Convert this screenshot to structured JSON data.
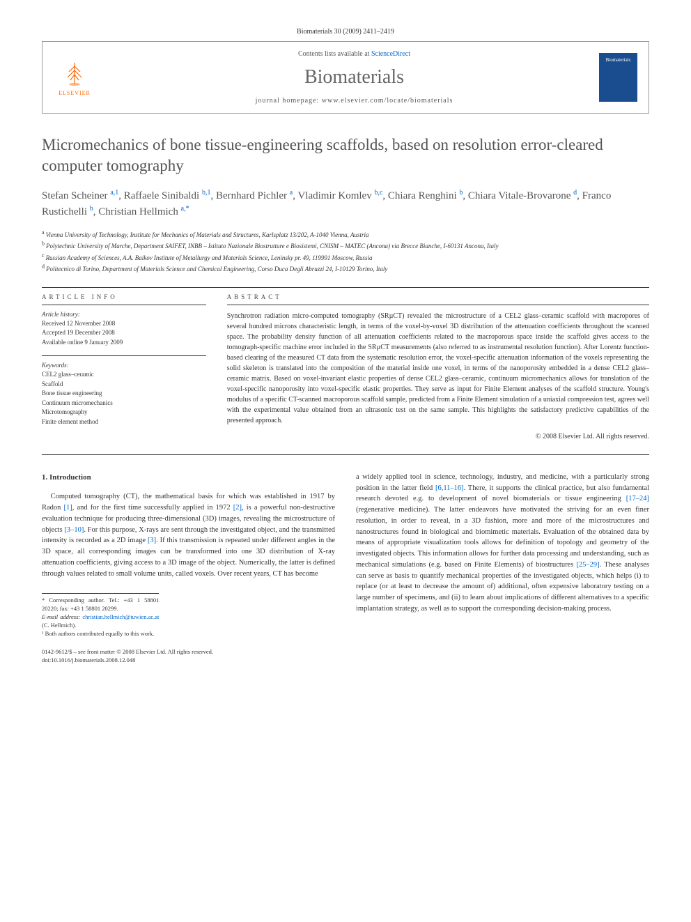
{
  "header": {
    "citation": "Biomaterials 30 (2009) 2411–2419",
    "contents_prefix": "Contents lists available at ",
    "contents_link": "ScienceDirect",
    "journal_name": "Biomaterials",
    "homepage_prefix": "journal homepage: ",
    "homepage_url": "www.elsevier.com/locate/biomaterials",
    "publisher": "ELSEVIER",
    "cover_label": "Biomaterials"
  },
  "title": "Micromechanics of bone tissue-engineering scaffolds, based on resolution error-cleared computer tomography",
  "authors": [
    {
      "name": "Stefan Scheiner",
      "marks": "a,1"
    },
    {
      "name": "Raffaele Sinibaldi",
      "marks": "b,1"
    },
    {
      "name": "Bernhard Pichler",
      "marks": "a"
    },
    {
      "name": "Vladimir Komlev",
      "marks": "b,c"
    },
    {
      "name": "Chiara Renghini",
      "marks": "b"
    },
    {
      "name": "Chiara Vitale-Brovarone",
      "marks": "d"
    },
    {
      "name": "Franco Rustichelli",
      "marks": "b"
    },
    {
      "name": "Christian Hellmich",
      "marks": "a,*"
    }
  ],
  "affiliations": [
    {
      "mark": "a",
      "text": "Vienna University of Technology, Institute for Mechanics of Materials and Structures, Karlsplatz 13/202, A-1040 Vienna, Austria"
    },
    {
      "mark": "b",
      "text": "Polytechnic University of Marche, Department SAIFET, INBB – Istituto Nazionale Biostrutture e Biosistemi, CNISM – MATEC (Ancona) via Brecce Bianche, I-60131 Ancona, Italy"
    },
    {
      "mark": "c",
      "text": "Russian Academy of Sciences, A.A. Baikov Institute of Metallurgy and Materials Science, Leninsky pr. 49, 119991 Moscow, Russia"
    },
    {
      "mark": "d",
      "text": "Politecnico di Torino, Department of Materials Science and Chemical Engineering, Corso Duca Degli Abruzzi 24, I-10129 Torino, Italy"
    }
  ],
  "info": {
    "header": "ARTICLE INFO",
    "history_label": "Article history:",
    "received": "Received 12 November 2008",
    "accepted": "Accepted 19 December 2008",
    "online": "Available online 9 January 2009",
    "keywords_label": "Keywords:",
    "keywords": [
      "CEL2 glass–ceramic",
      "Scaffold",
      "Bone tissue engineering",
      "Continuum micromechanics",
      "Microtomography",
      "Finite element method"
    ]
  },
  "abstract": {
    "header": "ABSTRACT",
    "text": "Synchrotron radiation micro-computed tomography (SRµCT) revealed the microstructure of a CEL2 glass–ceramic scaffold with macropores of several hundred microns characteristic length, in terms of the voxel-by-voxel 3D distribution of the attenuation coefficients throughout the scanned space. The probability density function of all attenuation coefficients related to the macroporous space inside the scaffold gives access to the tomograph-specific machine error included in the SRµCT measurements (also referred to as instrumental resolution function). After Lorentz function-based clearing of the measured CT data from the systematic resolution error, the voxel-specific attenuation information of the voxels representing the solid skeleton is translated into the composition of the material inside one voxel, in terms of the nanoporosity embedded in a dense CEL2 glass–ceramic matrix. Based on voxel-invariant elastic properties of dense CEL2 glass–ceramic, continuum micromechanics allows for translation of the voxel-specific nanoporosity into voxel-specific elastic properties. They serve as input for Finite Element analyses of the scaffold structure. Young's modulus of a specific CT-scanned macroporous scaffold sample, predicted from a Finite Element simulation of a uniaxial compression test, agrees well with the experimental value obtained from an ultrasonic test on the same sample. This highlights the satisfactory predictive capabilities of the presented approach.",
    "copyright": "© 2008 Elsevier Ltd. All rights reserved."
  },
  "body": {
    "section_number": "1.",
    "section_title": "Introduction",
    "col1_p1_a": "Computed tomography (CT), the mathematical basis for which was established in 1917 by Radon ",
    "ref1": "[1]",
    "col1_p1_b": ", and for the first time successfully applied in 1972 ",
    "ref2": "[2]",
    "col1_p1_c": ", is a powerful non-destructive evaluation technique for producing three-dimensional (3D) images, revealing the microstructure of objects ",
    "ref3": "[3–10]",
    "col1_p1_d": ". For this purpose, X-rays are sent through the investigated object, and the transmitted intensity is recorded as a 2D image ",
    "ref4": "[3]",
    "col1_p1_e": ". If this transmission is repeated under different angles in the 3D space, all corresponding images can be transformed into one 3D distribution of X-ray attenuation coefficients, giving access to a 3D image of the object. Numerically, the latter is defined through values related to small volume units, called voxels. Over recent years, CT has become",
    "col2_a": "a widely applied tool in science, technology, industry, and medicine, with a particularly strong position in the latter field ",
    "ref5": "[6,11–16]",
    "col2_b": ". There, it supports the clinical practice, but also fundamental research devoted e.g. to development of novel biomaterials or tissue engineering ",
    "ref6": "[17–24]",
    "col2_c": " (regenerative medicine). The latter endeavors have motivated the striving for an even finer resolution, in order to reveal, in a 3D fashion, more and more of the microstructures and nanostructures found in biological and biomimetic materials. Evaluation of the obtained data by means of appropriate visualization tools allows for definition of topology and geometry of the investigated objects. This information allows for further data processing and understanding, such as mechanical simulations (e.g. based on Finite Elements) of biostructures ",
    "ref7": "[25–29]",
    "col2_d": ". These analyses can serve as basis to quantify mechanical properties of the investigated objects, which helps (i) to replace (or at least to decrease the amount of) additional, often expensive laboratory testing on a large number of specimens, and (ii) to learn about implications of different alternatives to a specific implantation strategy, as well as to support the corresponding decision-making process."
  },
  "footnotes": {
    "corresponding": "* Corresponding author. Tel.: +43 1 58801 20220; fax: +43 1 58801 20299.",
    "email_label": "E-mail address: ",
    "email": "christian.hellmich@tuwien.ac.at",
    "email_suffix": " (C. Hellmich).",
    "equal": "¹ Both authors contributed equally to this work."
  },
  "footer": {
    "line1": "0142-9612/$ – see front matter © 2008 Elsevier Ltd. All rights reserved.",
    "line2": "doi:10.1016/j.biomaterials.2008.12.048"
  },
  "colors": {
    "link": "#0066cc",
    "elsevier_orange": "#ff6600",
    "journal_title_gray": "#666666",
    "cover_blue": "#1a4d8f"
  }
}
